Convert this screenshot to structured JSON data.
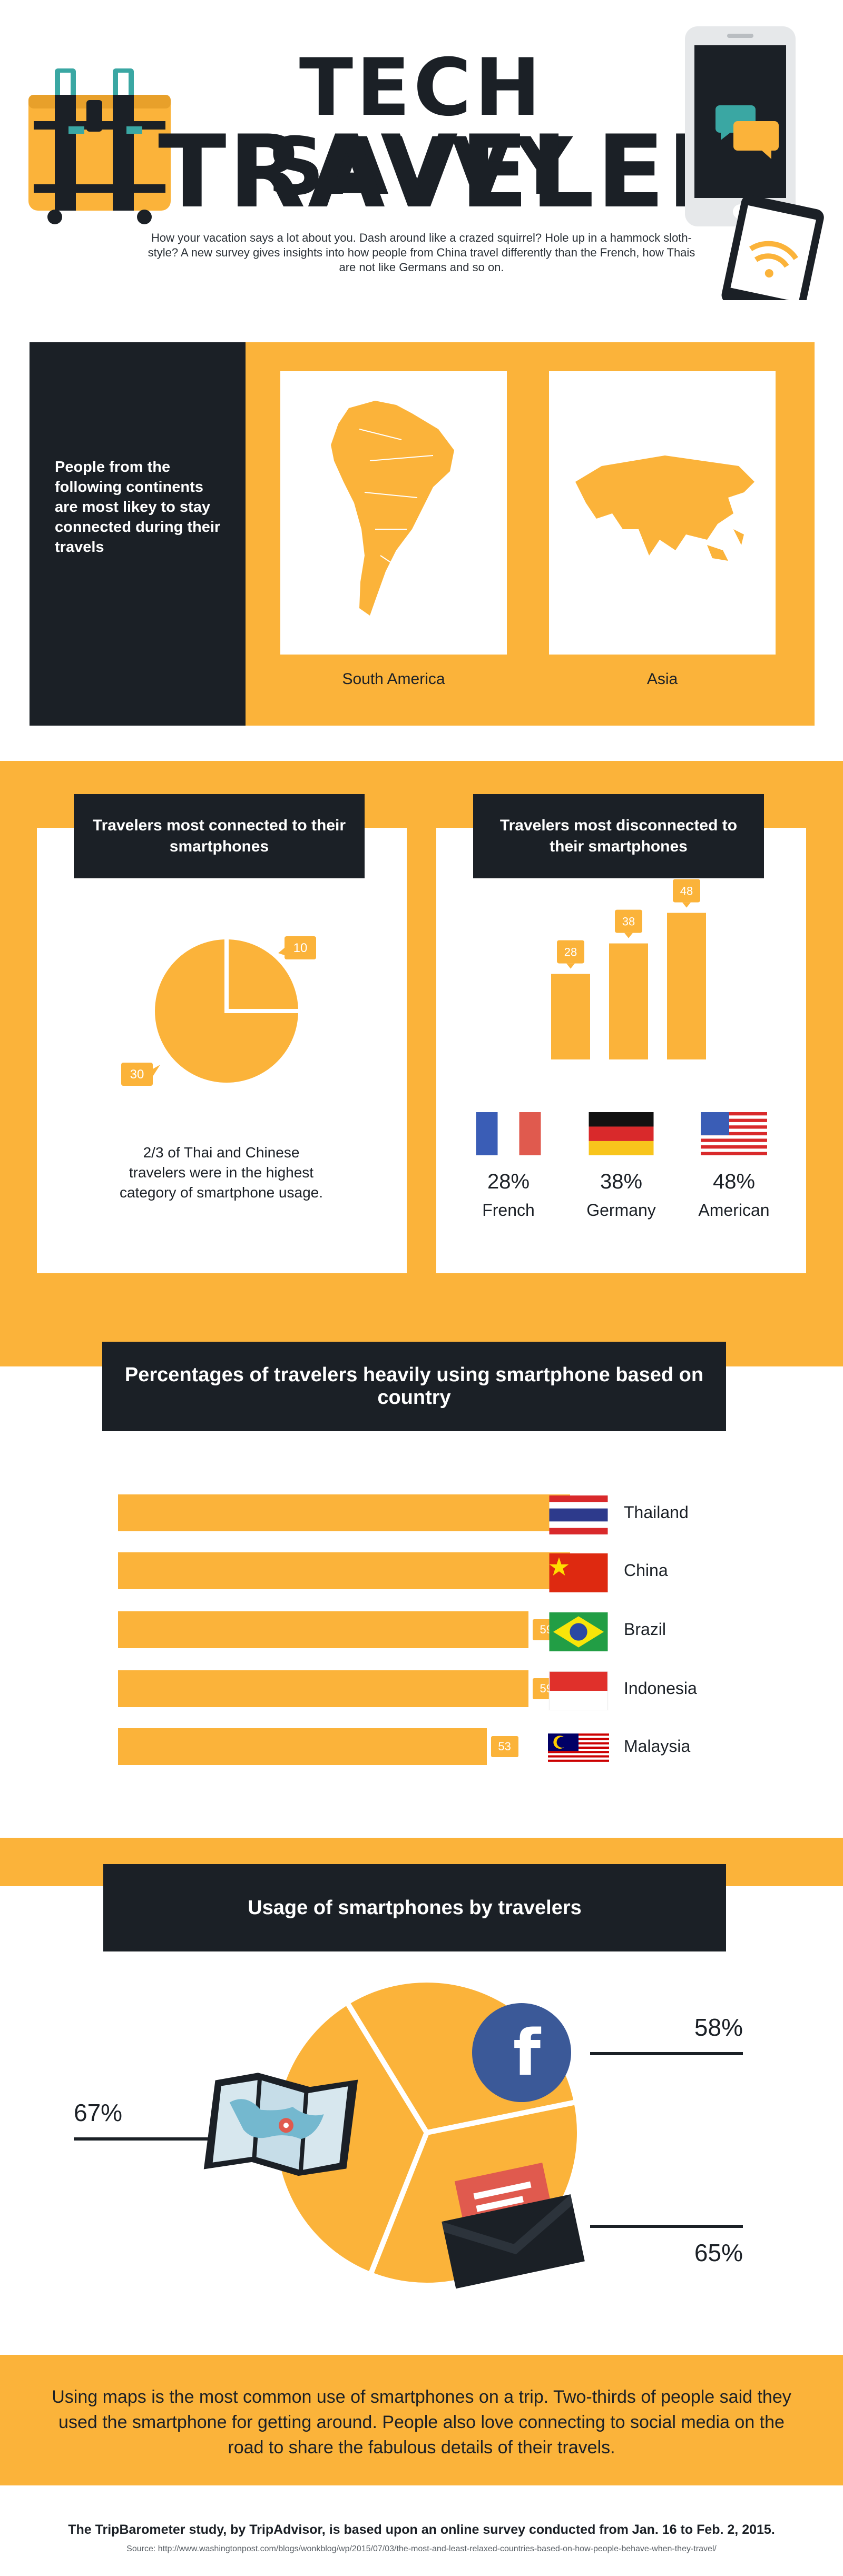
{
  "header": {
    "title_line1": "TECH SAVVY",
    "title_line2": "TRAVELER",
    "intro": "How your vacation says a lot about you. Dash around like a crazed squirrel? Hole up in a hammock sloth-style? A new survey gives insights into how people from China travel differently than the French, how Thais are not like Germans and so on."
  },
  "continents": {
    "text": "People from the following continents are most likey to stay connected during their travels",
    "items": [
      {
        "label": "South America",
        "icon": "south-america-map"
      },
      {
        "label": "Asia",
        "icon": "asia-map"
      }
    ]
  },
  "connected": {
    "heading": "Travelers most connected to their smartphones",
    "caption": "2/3 of Thai and Chinese travelers were in the highest category of smartphone usage."
  },
  "disconnected": {
    "heading": "Travelers most disconnected to their smartphones",
    "items": [
      {
        "pct": "28%",
        "country": "French",
        "flag": "france-flag"
      },
      {
        "pct": "38%",
        "country": "Germany",
        "flag": "germany-flag"
      },
      {
        "pct": "48%",
        "country": "American",
        "flag": "usa-flag"
      }
    ]
  },
  "heavy_usage": {
    "heading": "Percentages of travelers heavily using smartphone based on country",
    "flags": [
      "thailand-flag",
      "china-flag",
      "brazil-flag",
      "indonesia-flag",
      "malaysia-flag"
    ]
  },
  "usage": {
    "heading": "Usage of smartphones by travelers",
    "icons": [
      "map-icon",
      "facebook-icon",
      "envelope-icon"
    ]
  },
  "footer": {
    "summary": "Using maps is the most common use of smartphones on a trip. Two-thirds of people said they used the smartphone for getting around. People also love connecting to social media on the road to share the fabulous details of their travels.",
    "credit": "The TripBarometer study, by TripAdvisor, is based upon an online survey conducted from Jan. 16 to Feb. 2, 2015.",
    "source": "Source: http://www.washingtonpost.com/blogs/wonkblog/wp/2015/07/03/the-most-and-least-relaxed-countries-based-on-how-people-behave-when-they-travel/"
  },
  "colors": {
    "accent": "#fbb33a",
    "dark": "#1b2026",
    "white": "#ffffff"
  },
  "chart_data": [
    {
      "type": "pie",
      "values": [
        10,
        30
      ],
      "labels": [
        "10",
        "30"
      ]
    },
    {
      "type": "bar",
      "categories": [
        "French",
        "Germany",
        "American"
      ],
      "values": [
        28,
        38,
        48
      ],
      "labels": [
        "28",
        "38",
        "48"
      ]
    },
    {
      "type": "bar",
      "orientation": "horizontal",
      "categories": [
        "Thailand",
        "China",
        "Brazil",
        "Indonesia",
        "Malaysia"
      ],
      "values": [
        65,
        65,
        59,
        59,
        53
      ],
      "labels": [
        "65",
        "65",
        "59",
        "59",
        "53"
      ]
    },
    {
      "type": "pie",
      "values": [
        67,
        58,
        65
      ],
      "labels": [
        "67%",
        "58%",
        "65%"
      ]
    }
  ]
}
